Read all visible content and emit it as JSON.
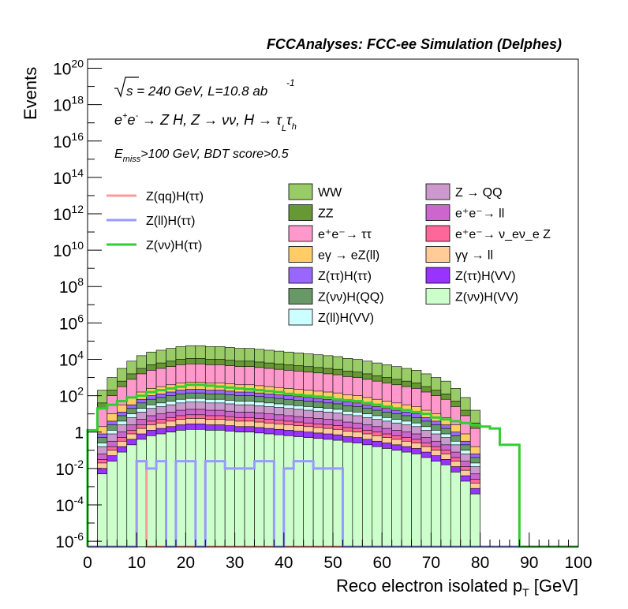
{
  "chart_data": {
    "type": "stacked_histogram_log",
    "title": "FCCAnalyses: FCC-ee Simulation (Delphes)",
    "xlabel": "Reco electron isolated p_T [GeV]",
    "ylabel": "Events",
    "xlim": [
      0,
      100
    ],
    "ylim_log10": [
      -6.3,
      20.5
    ],
    "x_ticks": [
      "0",
      "10",
      "20",
      "30",
      "40",
      "50",
      "60",
      "70",
      "80",
      "90",
      "100"
    ],
    "y_tick_exponents": [
      -6,
      -4,
      -2,
      0,
      2,
      4,
      6,
      8,
      10,
      12,
      14,
      16,
      18,
      20
    ],
    "annotations": {
      "energy": "√s = 240 GeV, L=10.8 ab ⁻¹",
      "process": "e⁺e⁻ → Z H, Z → νν, H → τ_L τ_h",
      "selection": "E_miss>100 GeV, BDT score>0.5"
    },
    "bin_width": 2,
    "signals": [
      {
        "name": "Z(qq)H(ττ)",
        "color": "#ff9999",
        "log10_values": [
          -6.5,
          -6.5,
          -6.5,
          -6.5,
          -6.5,
          -1.6,
          -6.5,
          -6.5,
          -6.5,
          -6.5,
          -6.5,
          -6.5,
          -6.5,
          -6.5,
          -6.5,
          -6.5,
          -6.5,
          -6.5,
          -6.5,
          -6.5,
          -6.5,
          -6.5,
          -6.5,
          -6.5,
          -6.5,
          -6.5,
          -6.5,
          -6.5,
          -6.5,
          -6.5,
          -6.5,
          -6.5,
          -6.5,
          -6.5,
          -6.5,
          -6.5,
          -6.5,
          -6.5,
          -6.5,
          -6.5,
          -6.5,
          -6.5,
          -6.5,
          -6.5,
          -6.5,
          -6.5,
          -6.5,
          -6.5,
          -6.5,
          -6.5
        ]
      },
      {
        "name": "Z(ll)H(ττ)",
        "color": "#9999ff",
        "log10_values": [
          -6.5,
          -6.5,
          -6.5,
          -6.5,
          -6.5,
          -1.6,
          -2.0,
          -1.6,
          -6.5,
          -1.6,
          -1.6,
          -6.5,
          -1.6,
          -1.6,
          -2.0,
          -2.0,
          -2.0,
          -1.6,
          -1.6,
          -6.5,
          -2.0,
          -1.6,
          -1.6,
          -2.0,
          -2.0,
          -2.0,
          -6.5,
          -6.5,
          -6.5,
          -6.5,
          -6.5,
          -6.5,
          -6.5,
          -6.5,
          -6.5,
          -6.5,
          -6.5,
          -6.5,
          -6.5,
          -6.5,
          -6.5,
          -6.5,
          -6.5,
          -6.5,
          -6.5,
          -6.5,
          -6.5,
          -6.5,
          -6.5,
          -6.5
        ]
      },
      {
        "name": "Z(νν)H(ττ)",
        "color": "#33cc33",
        "log10_values": [
          0.1,
          1.3,
          1.5,
          1.7,
          1.9,
          2.0,
          2.2,
          2.3,
          2.4,
          2.5,
          2.6,
          2.6,
          2.55,
          2.5,
          2.45,
          2.4,
          2.35,
          2.3,
          2.25,
          2.2,
          2.1,
          2.05,
          2.0,
          1.95,
          1.9,
          1.8,
          1.75,
          1.7,
          1.6,
          1.5,
          1.4,
          1.3,
          1.2,
          1.1,
          1.0,
          0.8,
          0.7,
          0.6,
          0.5,
          0.4,
          0.3,
          0.2,
          -0.7,
          -0.7,
          -6.5,
          -6.5,
          -6.5,
          -6.5,
          -6.5,
          -6.5
        ]
      }
    ],
    "backgrounds": [
      {
        "name": "WW",
        "color": "#99cc66",
        "log10_total": [
          -6.5,
          2.3,
          3.0,
          3.5,
          3.9,
          4.2,
          4.4,
          4.5,
          4.6,
          4.7,
          4.75,
          4.75,
          4.7,
          4.7,
          4.65,
          4.6,
          4.6,
          4.55,
          4.5,
          4.45,
          4.4,
          4.35,
          4.3,
          4.25,
          4.2,
          4.15,
          4.05,
          4.0,
          3.9,
          3.8,
          3.7,
          3.6,
          3.5,
          3.4,
          3.2,
          3.0,
          2.8,
          2.4,
          1.9,
          1.2,
          -6.5,
          -6.5,
          -6.5,
          -6.5,
          -6.5,
          -6.5,
          -6.5,
          -6.5,
          -6.5,
          -6.5
        ]
      },
      {
        "name": "ZZ",
        "color": "#669933"
      },
      {
        "name": "e⁺e⁻→ ττ",
        "color": "#ff99cc"
      },
      {
        "name": "eγ → eZ(ll)",
        "color": "#ffcc66"
      },
      {
        "name": "Z(ττ)H(ττ)",
        "color": "#9966ff"
      },
      {
        "name": "Z(νν)H(QQ)",
        "color": "#669966"
      },
      {
        "name": "Z(ll)H(VV)",
        "color": "#ccffff"
      },
      {
        "name": "Z → QQ",
        "color": "#cc99cc"
      },
      {
        "name": "e⁺e⁻→ ll",
        "color": "#cc66cc"
      },
      {
        "name": "e⁺e⁻→ ν_eν_e Z",
        "color": "#ff6699"
      },
      {
        "name": "γγ → ll",
        "color": "#ffcc99"
      },
      {
        "name": "Z(ττ)H(VV)",
        "color": "#9933ff"
      },
      {
        "name": "Z(νν)H(VV)",
        "color": "#ccffcc"
      }
    ]
  }
}
